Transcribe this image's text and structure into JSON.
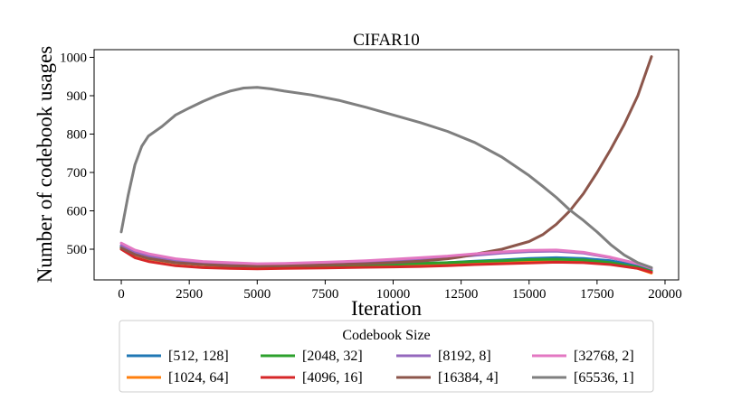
{
  "chart_data": {
    "type": "line",
    "title": "CIFAR10",
    "xlabel": "Iteration",
    "ylabel": "Number of codebook usages",
    "xlim": [
      -1000,
      20500
    ],
    "ylim": [
      420,
      1020
    ],
    "x_ticks": [
      0,
      2500,
      5000,
      7500,
      10000,
      12500,
      15000,
      17500,
      20000
    ],
    "y_ticks": [
      500,
      600,
      700,
      800,
      900,
      1000
    ],
    "x_tick_labels": [
      "0",
      "2500",
      "5000",
      "7500",
      "10000",
      "12500",
      "15000",
      "17500",
      "20000"
    ],
    "y_tick_labels": [
      "500",
      "600",
      "700",
      "800",
      "900",
      "1000"
    ],
    "grid": false,
    "legend": {
      "title": "Codebook Size",
      "placement": "bottom-center, below axes",
      "columns": 4
    },
    "series": [
      {
        "name": "[512, 128]",
        "color": "#1f77b4",
        "x": [
          0,
          500,
          1000,
          2000,
          3000,
          4000,
          5000,
          6000,
          7500,
          9000,
          10000,
          11000,
          12000,
          13000,
          14000,
          15000,
          16000,
          17000,
          18000,
          19000,
          19500
        ],
        "y": [
          507,
          488,
          478,
          467,
          461,
          459,
          457,
          458,
          459,
          460,
          462,
          463,
          465,
          469,
          472,
          476,
          478,
          476,
          470,
          457,
          445
        ]
      },
      {
        "name": "[1024, 64]",
        "color": "#ff7f0e",
        "x": [
          0,
          500,
          1000,
          2000,
          3000,
          4000,
          5000,
          6000,
          7500,
          9000,
          10000,
          11000,
          12000,
          13000,
          14000,
          15000,
          16000,
          17000,
          18000,
          19000,
          19500
        ],
        "y": [
          503,
          485,
          475,
          464,
          459,
          456,
          455,
          456,
          457,
          459,
          460,
          461,
          463,
          466,
          468,
          470,
          471,
          468,
          462,
          450,
          438
        ]
      },
      {
        "name": "[2048, 32]",
        "color": "#2ca02c",
        "x": [
          0,
          500,
          1000,
          2000,
          3000,
          4000,
          5000,
          6000,
          7500,
          9000,
          10000,
          11000,
          12000,
          13000,
          14000,
          15000,
          16000,
          17000,
          18000,
          19000,
          19500
        ],
        "y": [
          505,
          487,
          476,
          465,
          460,
          457,
          456,
          457,
          458,
          460,
          461,
          463,
          465,
          468,
          470,
          473,
          474,
          472,
          465,
          453,
          442
        ]
      },
      {
        "name": "[4096, 16]",
        "color": "#d62728",
        "x": [
          0,
          500,
          1000,
          2000,
          3000,
          4000,
          5000,
          6000,
          7500,
          9000,
          10000,
          11000,
          12000,
          13000,
          14000,
          15000,
          16000,
          17000,
          18000,
          19000,
          19500
        ],
        "y": [
          500,
          478,
          468,
          457,
          452,
          450,
          449,
          450,
          451,
          453,
          454,
          455,
          457,
          460,
          462,
          464,
          466,
          465,
          460,
          450,
          440
        ]
      },
      {
        "name": "[8192, 8]",
        "color": "#9467bd",
        "x": [
          0,
          500,
          1000,
          2000,
          3000,
          4000,
          5000,
          6000,
          7500,
          9000,
          10000,
          11000,
          12000,
          13000,
          14000,
          15000,
          16000,
          17000,
          18000,
          19000,
          19500
        ],
        "y": [
          510,
          493,
          483,
          471,
          466,
          463,
          461,
          462,
          464,
          467,
          470,
          474,
          478,
          484,
          490,
          494,
          495,
          490,
          478,
          462,
          450
        ]
      },
      {
        "name": "[16384, 4]",
        "color": "#8c564b",
        "x": [
          0,
          500,
          1000,
          2000,
          3000,
          4000,
          5000,
          6000,
          7500,
          9000,
          10000,
          11000,
          12000,
          12500,
          13000,
          14000,
          15000,
          15500,
          16000,
          16500,
          17000,
          17500,
          18000,
          18500,
          19000,
          19500
        ],
        "y": [
          503,
          486,
          476,
          465,
          460,
          457,
          456,
          457,
          459,
          462,
          465,
          469,
          475,
          480,
          487,
          500,
          520,
          538,
          565,
          600,
          645,
          700,
          760,
          825,
          900,
          1002
        ]
      },
      {
        "name": "[32768, 2]",
        "color": "#e377c2",
        "x": [
          0,
          500,
          1000,
          2000,
          3000,
          4000,
          5000,
          6000,
          7500,
          9000,
          10000,
          11000,
          12000,
          13000,
          14000,
          15000,
          16000,
          17000,
          18000,
          19000,
          19500
        ],
        "y": [
          516,
          498,
          488,
          475,
          468,
          465,
          462,
          463,
          466,
          470,
          474,
          478,
          482,
          488,
          493,
          497,
          498,
          492,
          479,
          462,
          451
        ]
      },
      {
        "name": "[65536, 1]",
        "color": "#7f7f7f",
        "x": [
          0,
          250,
          500,
          750,
          1000,
          1500,
          2000,
          2500,
          3000,
          3500,
          4000,
          4500,
          5000,
          5500,
          6000,
          7000,
          8000,
          9000,
          10000,
          11000,
          12000,
          13000,
          14000,
          15000,
          15500,
          16000,
          16500,
          17000,
          17500,
          18000,
          18500,
          19000,
          19500
        ],
        "y": [
          545,
          640,
          720,
          768,
          795,
          820,
          850,
          868,
          885,
          900,
          912,
          920,
          922,
          918,
          912,
          902,
          888,
          870,
          850,
          830,
          807,
          778,
          740,
          692,
          664,
          635,
          602,
          575,
          545,
          512,
          485,
          465,
          452
        ]
      }
    ]
  }
}
